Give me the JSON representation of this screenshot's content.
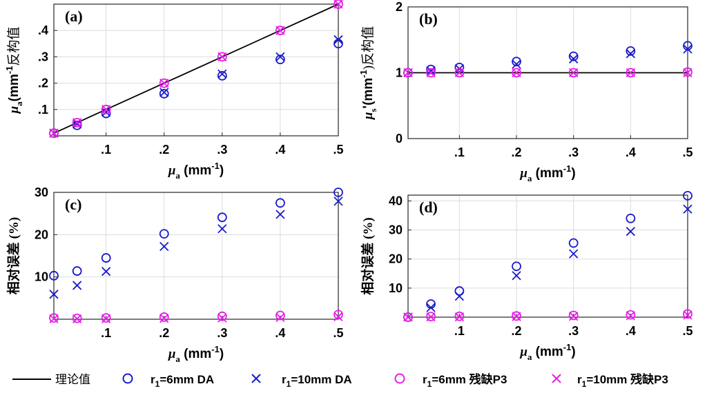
{
  "legend": {
    "theory": "理论值",
    "s1": {
      "sym": "r",
      "sub": "1",
      "txt": "=6mm DA"
    },
    "s2": {
      "sym": "r",
      "sub": "1",
      "txt": "=10mm DA"
    },
    "s3": {
      "sym": "r",
      "sub": "1",
      "txt": "=6mm 残缺P3"
    },
    "s4": {
      "sym": "r",
      "sub": "1",
      "txt": "=10mm 残缺P3"
    }
  },
  "colors": {
    "blue": "#1a1acc",
    "magenta": "#e61ee6",
    "line": "#000000"
  },
  "chart_data": [
    {
      "id": "a",
      "type": "scatter",
      "panel_label": "(a)",
      "xlabel": {
        "sym": "μ",
        "sub": "a",
        "pre": "(mm",
        "sup": "-1",
        "post": ")"
      },
      "ylabel": {
        "sym": "μ",
        "sub": "a",
        "pre": "(mm",
        "sup": "-1",
        "post": "反构值"
      },
      "xlim": [
        0.01,
        0.5
      ],
      "ylim": [
        0,
        0.5
      ],
      "xticks": [
        0.1,
        0.2,
        0.3,
        0.4,
        0.5
      ],
      "yticks": [
        0.1,
        0.2,
        0.3,
        0.4
      ],
      "x": [
        0.01,
        0.05,
        0.1,
        0.2,
        0.3,
        0.4,
        0.5
      ],
      "theory": [
        0.01,
        0.05,
        0.1,
        0.2,
        0.3,
        0.4,
        0.5
      ],
      "series": [
        {
          "marker": "circle",
          "color": "blue",
          "values": [
            0.01,
            0.04,
            0.085,
            0.16,
            0.228,
            0.29,
            0.35
          ]
        },
        {
          "marker": "x",
          "color": "blue",
          "values": [
            0.01,
            0.045,
            0.09,
            0.165,
            0.235,
            0.3,
            0.365
          ]
        },
        {
          "marker": "circle",
          "color": "magenta",
          "values": [
            0.01,
            0.05,
            0.1,
            0.2,
            0.3,
            0.4,
            0.5
          ]
        },
        {
          "marker": "x",
          "color": "magenta",
          "values": [
            0.01,
            0.05,
            0.1,
            0.2,
            0.3,
            0.4,
            0.5
          ]
        }
      ]
    },
    {
      "id": "b",
      "type": "scatter",
      "panel_label": "(b)",
      "xlabel": {
        "sym": "μ",
        "sub": "a",
        "pre": "(mm",
        "sup": "-1",
        "post": ")"
      },
      "ylabel": {
        "sym": "μ",
        "sub": "s",
        "pre": "'(mm",
        "sup": "-1",
        "post": ")反构值"
      },
      "xlim": [
        0.01,
        0.5
      ],
      "ylim": [
        0,
        2
      ],
      "xticks": [
        0.1,
        0.2,
        0.3,
        0.4,
        0.5
      ],
      "yticks": [
        0,
        1,
        2
      ],
      "x": [
        0.01,
        0.05,
        0.1,
        0.2,
        0.3,
        0.4,
        0.5
      ],
      "theory": [
        1,
        1,
        1,
        1,
        1,
        1,
        1
      ],
      "series": [
        {
          "marker": "circle",
          "color": "blue",
          "values": [
            1.0,
            1.05,
            1.08,
            1.17,
            1.25,
            1.33,
            1.41
          ]
        },
        {
          "marker": "x",
          "color": "blue",
          "values": [
            1.0,
            1.03,
            1.06,
            1.13,
            1.21,
            1.29,
            1.36
          ]
        },
        {
          "marker": "circle",
          "color": "magenta",
          "values": [
            1.0,
            1.0,
            1.0,
            1.0,
            1.0,
            1.0,
            1.01
          ]
        },
        {
          "marker": "x",
          "color": "magenta",
          "values": [
            1.0,
            1.0,
            1.0,
            1.0,
            1.0,
            1.0,
            1.0
          ]
        }
      ]
    },
    {
      "id": "c",
      "type": "scatter",
      "panel_label": "(c)",
      "xlabel": {
        "sym": "μ",
        "sub": "a",
        "pre": "(mm",
        "sup": "-1",
        "post": ")"
      },
      "ylabel": {
        "plain": "相对误差 (%)"
      },
      "xlim": [
        0.01,
        0.5
      ],
      "ylim": [
        0,
        30
      ],
      "xticks": [
        0.1,
        0.2,
        0.3,
        0.4,
        0.5
      ],
      "yticks": [
        10,
        20,
        30
      ],
      "x": [
        0.01,
        0.05,
        0.1,
        0.2,
        0.3,
        0.4,
        0.5
      ],
      "series": [
        {
          "marker": "circle",
          "color": "blue",
          "values": [
            10.3,
            11.4,
            14.5,
            20.2,
            24.1,
            27.5,
            30.0
          ]
        },
        {
          "marker": "x",
          "color": "blue",
          "values": [
            5.9,
            8.0,
            11.3,
            17.2,
            21.4,
            24.8,
            27.9
          ]
        },
        {
          "marker": "circle",
          "color": "magenta",
          "values": [
            0.3,
            0.2,
            0.3,
            0.5,
            0.7,
            0.9,
            1.1
          ]
        },
        {
          "marker": "x",
          "color": "magenta",
          "values": [
            0.1,
            0.1,
            0.1,
            0.2,
            0.3,
            0.4,
            0.6
          ]
        }
      ]
    },
    {
      "id": "d",
      "type": "scatter",
      "panel_label": "(d)",
      "xlabel": {
        "sym": "μ",
        "sub": "a",
        "pre": "(mm",
        "sup": "-1",
        "post": ")"
      },
      "ylabel": {
        "plain": "相对误差 (%)"
      },
      "xlim": [
        0.01,
        0.5
      ],
      "ylim": [
        0,
        42
      ],
      "xticks": [
        0.1,
        0.2,
        0.3,
        0.4,
        0.5
      ],
      "yticks": [
        10,
        20,
        30,
        40
      ],
      "x": [
        0.01,
        0.05,
        0.1,
        0.2,
        0.3,
        0.4,
        0.5
      ],
      "series": [
        {
          "marker": "circle",
          "color": "blue",
          "values": [
            0.0,
            4.5,
            9.0,
            17.5,
            25.5,
            34.0,
            41.8
          ]
        },
        {
          "marker": "x",
          "color": "blue",
          "values": [
            0.0,
            3.3,
            7.2,
            14.3,
            21.8,
            29.5,
            37.2
          ]
        },
        {
          "marker": "circle",
          "color": "magenta",
          "values": [
            0.0,
            0.2,
            0.3,
            0.4,
            0.6,
            0.8,
            1.1
          ]
        },
        {
          "marker": "x",
          "color": "magenta",
          "values": [
            0.0,
            0.1,
            0.1,
            0.2,
            0.3,
            0.5,
            0.7
          ]
        }
      ]
    }
  ]
}
